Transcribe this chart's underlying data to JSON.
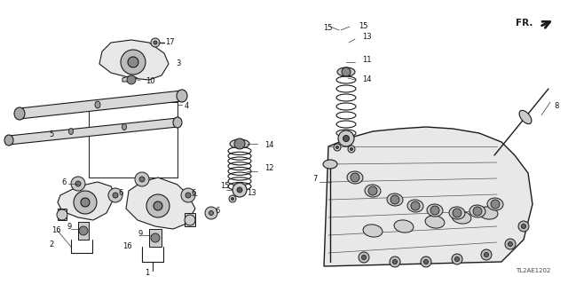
{
  "bg_color": "#ffffff",
  "fig_width": 6.4,
  "fig_height": 3.2,
  "dpi": 100,
  "part_number": "TL2AE1202",
  "line_color": "#1a1a1a",
  "gray_fill": "#cccccc",
  "light_gray": "#e8e8e8"
}
